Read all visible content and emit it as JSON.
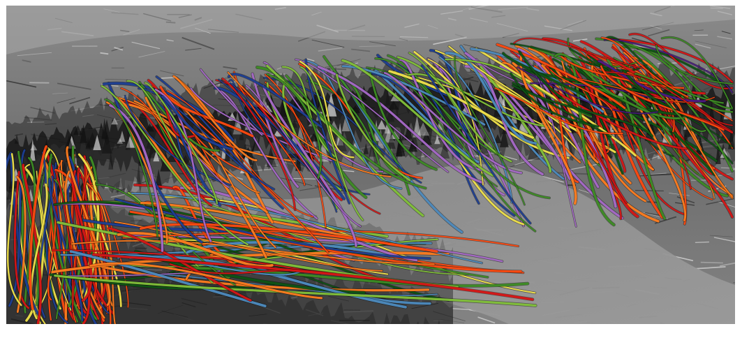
{
  "figure": {
    "background": "#ffffff",
    "surface": {
      "base_color": "#7d7d7d",
      "highlight_color": "#f2f2f2",
      "shadow_color": "#0e0e0e"
    },
    "fiber_palette": [
      "#ff4a10",
      "#d81616",
      "#1e3f95",
      "#3e8d25",
      "#83c23a",
      "#f1e34c",
      "#a86ac9",
      "#4e8cc0",
      "#ff7d20",
      "#0f5515"
    ]
  }
}
